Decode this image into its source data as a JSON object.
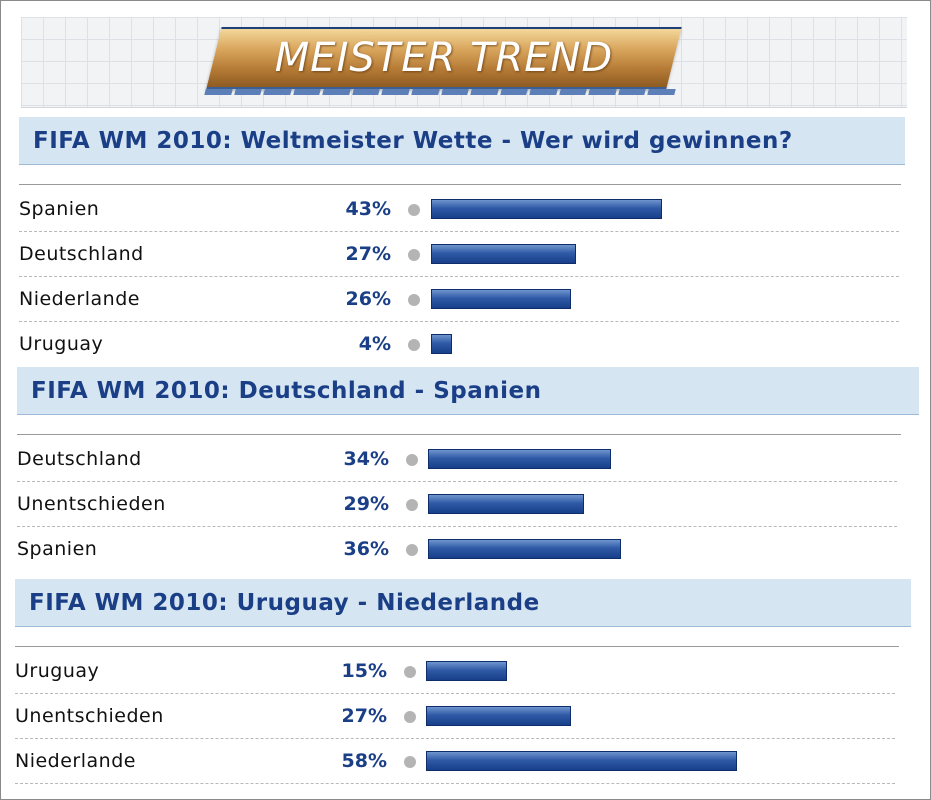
{
  "banner": {
    "logo_text": "MEISTER TREND"
  },
  "colors": {
    "header_bg": "#d6e5f2",
    "header_text": "#1b3f87",
    "bar": "#1f4a97",
    "dot": "#b4b4b4"
  },
  "chart_data": [
    {
      "type": "bar",
      "orientation": "horizontal",
      "title": "FIFA WM 2010: Weltmeister Wette - Wer wird gewinnen?",
      "categories": [
        "Spanien",
        "Deutschland",
        "Niederlande",
        "Uruguay"
      ],
      "values": [
        43,
        27,
        26,
        4
      ],
      "value_labels": [
        "43%",
        "27%",
        "26%",
        "4%"
      ],
      "unit": "%",
      "xlim": [
        0,
        100
      ]
    },
    {
      "type": "bar",
      "orientation": "horizontal",
      "title": "FIFA WM 2010: Deutschland - Spanien",
      "categories": [
        "Deutschland",
        "Unentschieden",
        "Spanien"
      ],
      "values": [
        34,
        29,
        36
      ],
      "value_labels": [
        "34%",
        "29%",
        "36%"
      ],
      "unit": "%",
      "xlim": [
        0,
        100
      ]
    },
    {
      "type": "bar",
      "orientation": "horizontal",
      "title": "FIFA WM 2010: Uruguay - Niederlande",
      "categories": [
        "Uruguay",
        "Unentschieden",
        "Niederlande"
      ],
      "values": [
        15,
        27,
        58
      ],
      "value_labels": [
        "15%",
        "27%",
        "58%"
      ],
      "unit": "%",
      "xlim": [
        0,
        100
      ]
    }
  ]
}
